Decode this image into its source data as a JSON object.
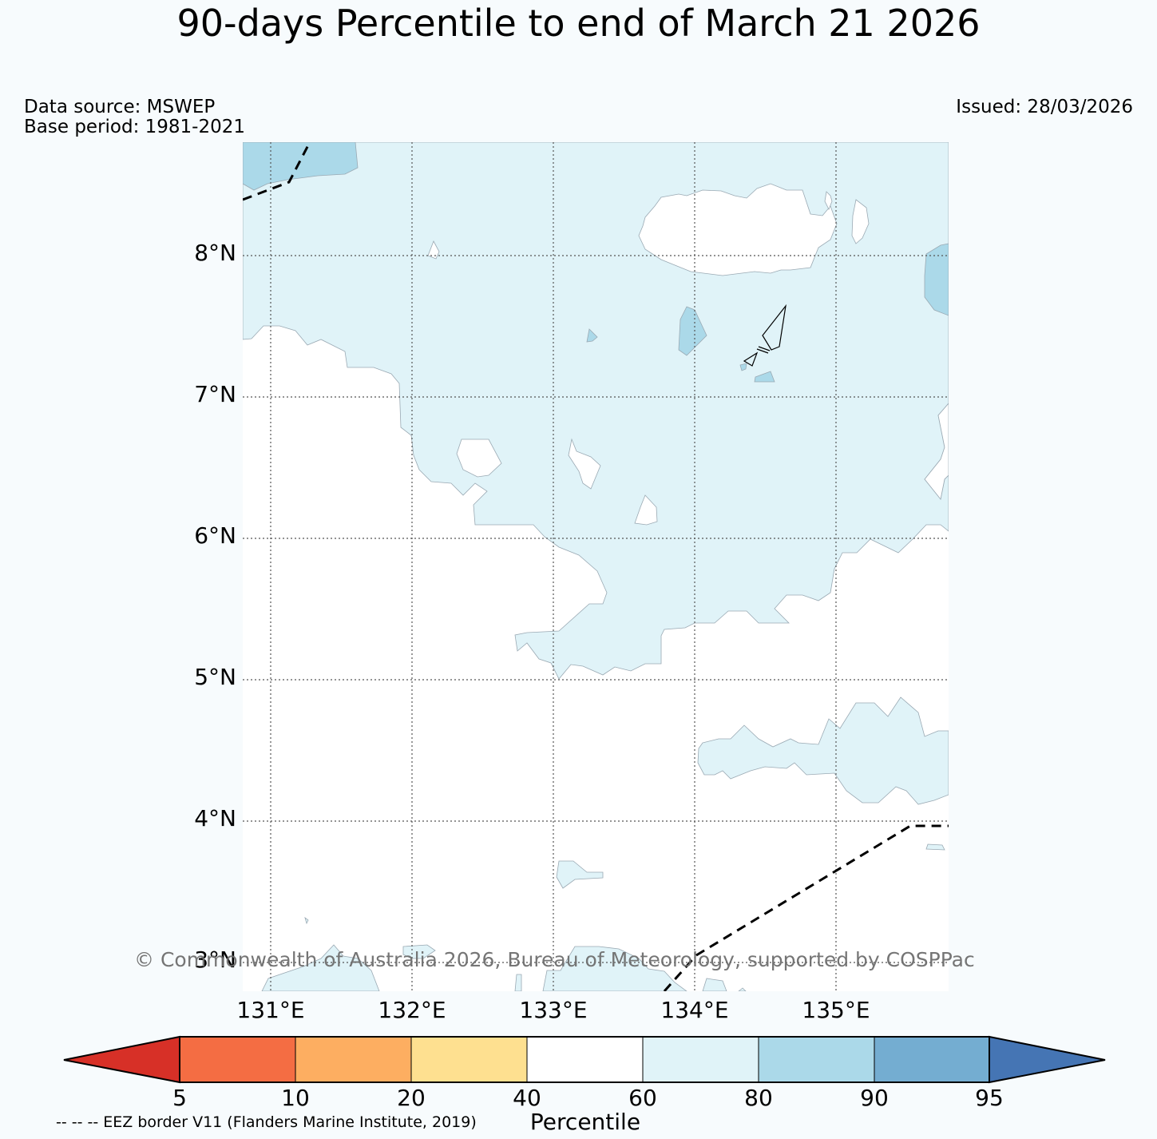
{
  "title": "90-days Percentile to end of March 21 2026",
  "meta": {
    "data_source": "Data source: MSWEP",
    "base_period": "Base period: 1981-2021",
    "issued": "Issued: 28/03/2026"
  },
  "map": {
    "latitude_labels": [
      "8°N",
      "7°N",
      "6°N",
      "5°N",
      "4°N",
      "3°N"
    ],
    "longitude_labels": [
      "131°E",
      "132°E",
      "133°E",
      "134°E",
      "135°E"
    ],
    "lat_range": [
      2.8,
      8.8
    ],
    "lon_range": [
      130.8,
      135.8
    ],
    "background_category": "40-60",
    "copyright": "© Commonwealth of Australia 2026, Bureau of Meteorology, supported by COSPPac"
  },
  "colorbar": {
    "label": "Percentile",
    "ticks": [
      "5",
      "10",
      "20",
      "40",
      "60",
      "80",
      "90",
      "95"
    ],
    "colors": {
      "below_5": "#d73027",
      "5-10": "#f46d43",
      "10-20": "#fdae61",
      "20-40": "#fee090",
      "40-60": "#ffffff",
      "60-80": "#e0f3f8",
      "80-90": "#abd9e9",
      "90-95": "#74add1",
      "above_95": "#4575b4"
    }
  },
  "legend": {
    "eez_note": "-- -- -- EEZ border V11 (Flanders Marine Institute, 2019)"
  }
}
